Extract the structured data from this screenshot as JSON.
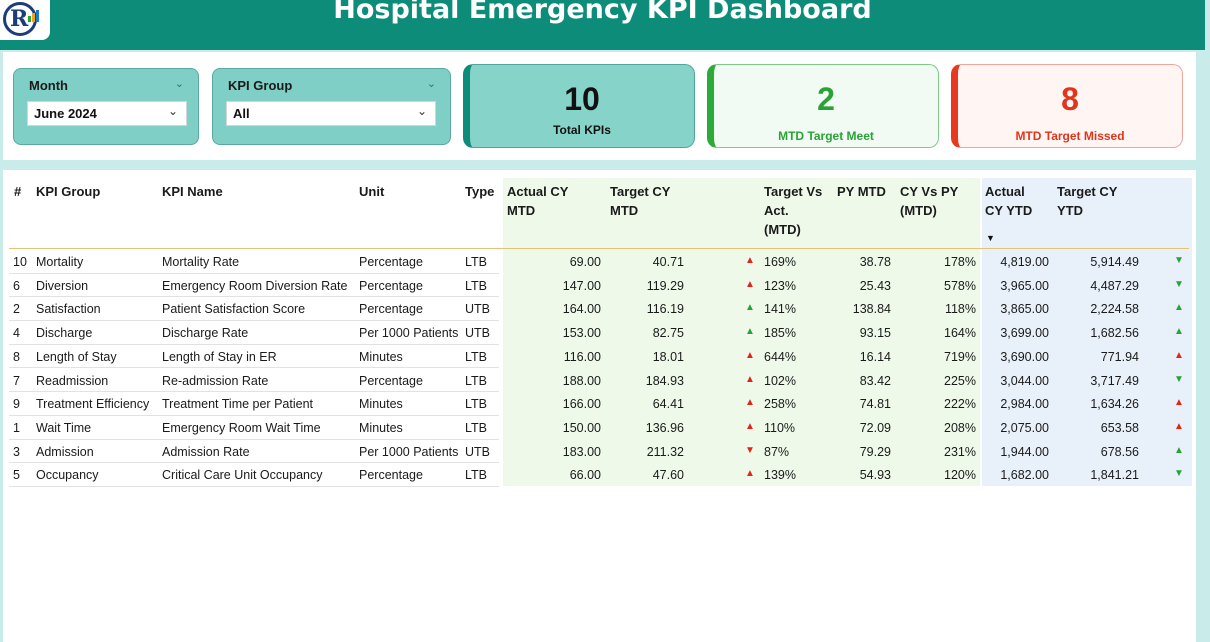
{
  "header": {
    "title": "Hospital Emergency KPI Dashboard",
    "more": "•••"
  },
  "logo": {
    "icon": "analytics-logo-icon",
    "glyph": "R"
  },
  "slicers": {
    "month": {
      "label": "Month",
      "value": "June 2024"
    },
    "kpi_group": {
      "label": "KPI Group",
      "value": "All"
    }
  },
  "cards": {
    "total": {
      "value": "10",
      "caption": "Total KPIs"
    },
    "meet": {
      "value": "2",
      "caption": "MTD Target Meet"
    },
    "missed": {
      "value": "8",
      "caption": "MTD Target Missed"
    }
  },
  "colors": {
    "header": "#0d8c7a",
    "meet": "#2aa336",
    "missed": "#e0351b",
    "mtd_bg": "#eef9ea",
    "ytd_bg": "#e8f1fa"
  },
  "table": {
    "headers": {
      "num": "#",
      "group": "KPI Group",
      "name": "KPI Name",
      "unit": "Unit",
      "type": "Type",
      "actual_mtd": [
        "Actual CY",
        "MTD"
      ],
      "target_mtd": [
        "Target CY",
        "MTD"
      ],
      "tva": [
        "Target Vs",
        "Act.",
        "(MTD)"
      ],
      "py_mtd": "PY MTD",
      "cy_vs_py": [
        "CY Vs PY",
        "(MTD)"
      ],
      "actual_ytd": [
        "Actual",
        "CY YTD"
      ],
      "target_ytd": [
        "Target CY",
        "YTD"
      ]
    },
    "rows": [
      {
        "num": "10",
        "group": "Mortality",
        "name": "Mortality Rate",
        "unit": "Percentage",
        "type": "LTB",
        "actual_mtd": "69.00",
        "target_mtd": "40.71",
        "mtd_icon": "up-red",
        "tva": "169%",
        "py_mtd": "38.78",
        "cy_vs_py": "178%",
        "actual_ytd": "4,819.00",
        "target_ytd": "5,914.49",
        "ytd_icon": "down-green"
      },
      {
        "num": "6",
        "group": "Diversion",
        "name": "Emergency Room Diversion Rate",
        "unit": "Percentage",
        "type": "LTB",
        "actual_mtd": "147.00",
        "target_mtd": "119.29",
        "mtd_icon": "up-red",
        "tva": "123%",
        "py_mtd": "25.43",
        "cy_vs_py": "578%",
        "actual_ytd": "3,965.00",
        "target_ytd": "4,487.29",
        "ytd_icon": "down-green"
      },
      {
        "num": "2",
        "group": "Satisfaction",
        "name": "Patient Satisfaction Score",
        "unit": "Percentage",
        "type": "UTB",
        "actual_mtd": "164.00",
        "target_mtd": "116.19",
        "mtd_icon": "up-green",
        "tva": "141%",
        "py_mtd": "138.84",
        "cy_vs_py": "118%",
        "actual_ytd": "3,865.00",
        "target_ytd": "2,224.58",
        "ytd_icon": "up-green"
      },
      {
        "num": "4",
        "group": "Discharge",
        "name": "Discharge Rate",
        "unit": "Per 1000 Patients",
        "type": "UTB",
        "actual_mtd": "153.00",
        "target_mtd": "82.75",
        "mtd_icon": "up-green",
        "tva": "185%",
        "py_mtd": "93.15",
        "cy_vs_py": "164%",
        "actual_ytd": "3,699.00",
        "target_ytd": "1,682.56",
        "ytd_icon": "up-green"
      },
      {
        "num": "8",
        "group": "Length of Stay",
        "name": "Length of Stay in ER",
        "unit": "Minutes",
        "type": "LTB",
        "actual_mtd": "116.00",
        "target_mtd": "18.01",
        "mtd_icon": "up-red",
        "tva": "644%",
        "py_mtd": "16.14",
        "cy_vs_py": "719%",
        "actual_ytd": "3,690.00",
        "target_ytd": "771.94",
        "ytd_icon": "up-red"
      },
      {
        "num": "7",
        "group": "Readmission",
        "name": "Re-admission Rate",
        "unit": "Percentage",
        "type": "LTB",
        "actual_mtd": "188.00",
        "target_mtd": "184.93",
        "mtd_icon": "up-red",
        "tva": "102%",
        "py_mtd": "83.42",
        "cy_vs_py": "225%",
        "actual_ytd": "3,044.00",
        "target_ytd": "3,717.49",
        "ytd_icon": "down-green"
      },
      {
        "num": "9",
        "group": "Treatment Efficiency",
        "name": "Treatment Time per Patient",
        "unit": "Minutes",
        "type": "LTB",
        "actual_mtd": "166.00",
        "target_mtd": "64.41",
        "mtd_icon": "up-red",
        "tva": "258%",
        "py_mtd": "74.81",
        "cy_vs_py": "222%",
        "actual_ytd": "2,984.00",
        "target_ytd": "1,634.26",
        "ytd_icon": "up-red"
      },
      {
        "num": "1",
        "group": "Wait Time",
        "name": "Emergency Room Wait Time",
        "unit": "Minutes",
        "type": "LTB",
        "actual_mtd": "150.00",
        "target_mtd": "136.96",
        "mtd_icon": "up-red",
        "tva": "110%",
        "py_mtd": "72.09",
        "cy_vs_py": "208%",
        "actual_ytd": "2,075.00",
        "target_ytd": "653.58",
        "ytd_icon": "up-red"
      },
      {
        "num": "3",
        "group": "Admission",
        "name": "Admission Rate",
        "unit": "Per 1000 Patients",
        "type": "UTB",
        "actual_mtd": "183.00",
        "target_mtd": "211.32",
        "mtd_icon": "down-red",
        "tva": "87%",
        "py_mtd": "79.29",
        "cy_vs_py": "231%",
        "actual_ytd": "1,944.00",
        "target_ytd": "678.56",
        "ytd_icon": "up-green"
      },
      {
        "num": "5",
        "group": "Occupancy",
        "name": "Critical Care Unit Occupancy",
        "unit": "Percentage",
        "type": "LTB",
        "actual_mtd": "66.00",
        "target_mtd": "47.60",
        "mtd_icon": "up-red",
        "tva": "139%",
        "py_mtd": "54.93",
        "cy_vs_py": "120%",
        "actual_ytd": "1,682.00",
        "target_ytd": "1,841.21",
        "ytd_icon": "down-green"
      }
    ]
  }
}
